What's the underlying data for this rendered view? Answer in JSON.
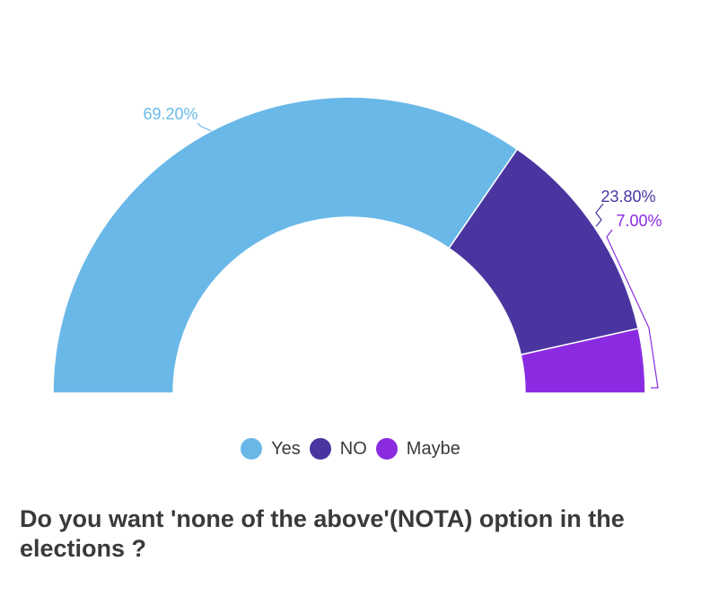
{
  "chart_data": {
    "type": "pie",
    "variant": "half-donut",
    "title": "Do you want 'none of the above'(NOTA) option in the elections ?",
    "legend_position": "bottom-center",
    "slices": [
      {
        "name": "Yes",
        "value": 69.2,
        "label": "69.20%",
        "color": "#6ab8e8"
      },
      {
        "name": "NO",
        "value": 23.8,
        "label": "23.80%",
        "color": "#4a35a0"
      },
      {
        "name": "Maybe",
        "value": 7.0,
        "label": "7.00%",
        "color": "#8a2be2"
      }
    ]
  }
}
